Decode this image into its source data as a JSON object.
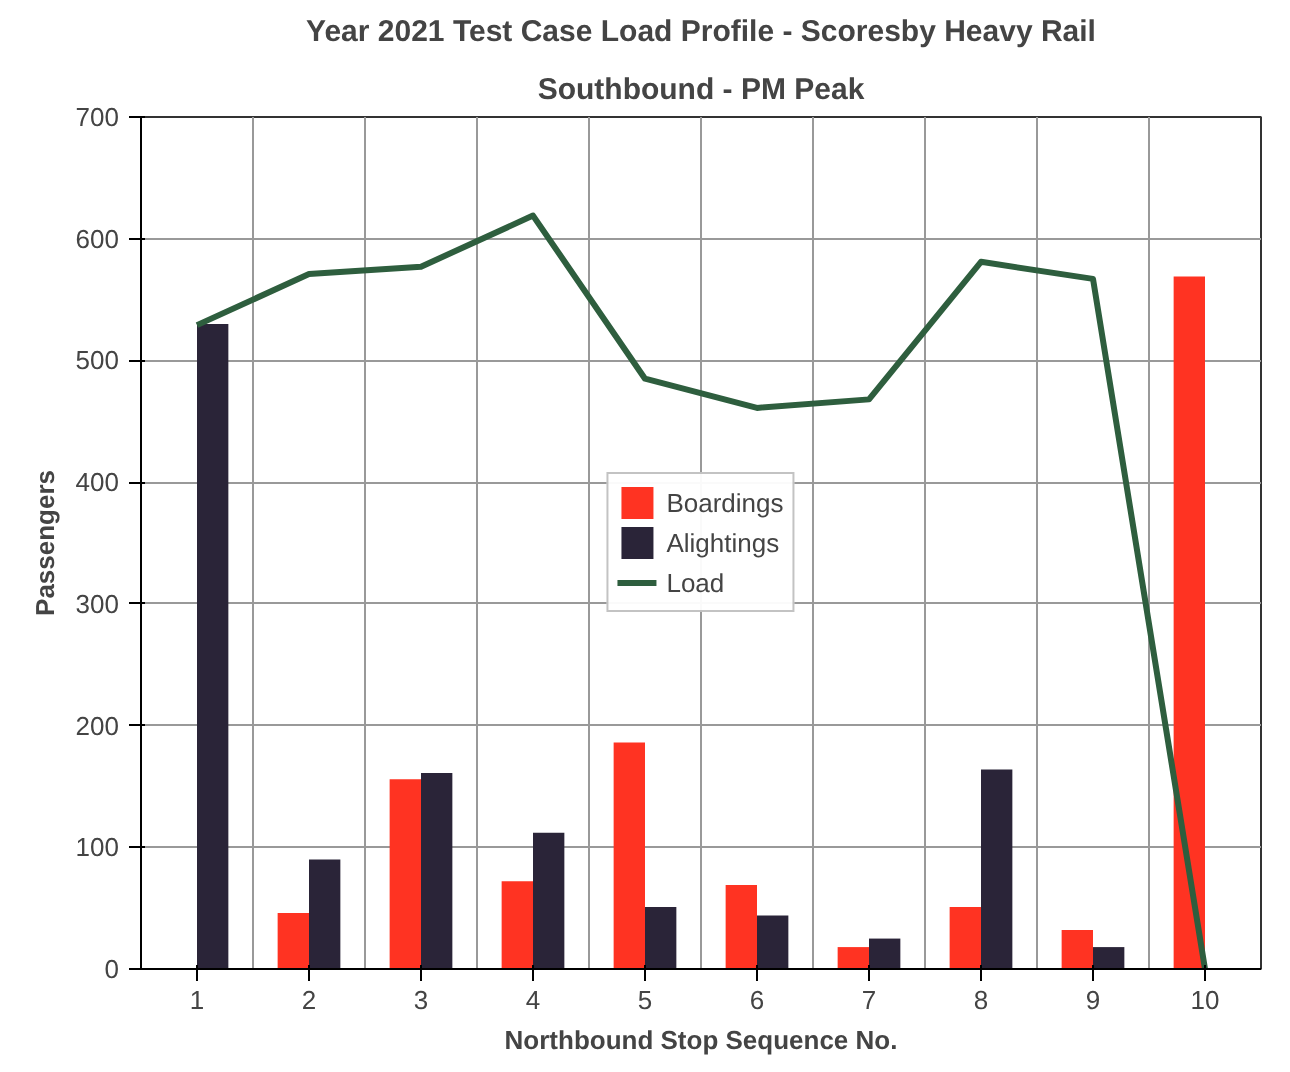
{
  "chart_data": {
    "type": "bar",
    "title": "Year 2021 Test Case Load Profile - Scoresby Heavy Rail",
    "subtitle": "Southbound - PM Peak",
    "xlabel": "Northbound Stop Sequence No.",
    "ylabel": "Passengers",
    "categories": [
      "1",
      "2",
      "3",
      "4",
      "5",
      "6",
      "7",
      "8",
      "9",
      "10"
    ],
    "series": [
      {
        "name": "Boardings",
        "color": "#ff3322",
        "values": [
          0,
          46,
          156,
          72,
          186,
          69,
          18,
          51,
          32,
          569
        ]
      },
      {
        "name": "Alightings",
        "color": "#2a2438",
        "values": [
          530,
          90,
          161,
          112,
          51,
          44,
          25,
          164,
          18,
          0
        ]
      },
      {
        "name": "Load",
        "type": "line",
        "color": "#2e5e3e",
        "values": [
          529,
          571,
          577,
          619,
          485,
          461,
          468,
          581,
          567,
          0
        ]
      }
    ],
    "ylim": [
      0,
      700
    ],
    "yticks": [
      0,
      100,
      200,
      300,
      400,
      500,
      600,
      700
    ],
    "grid": true,
    "legend": "center"
  }
}
